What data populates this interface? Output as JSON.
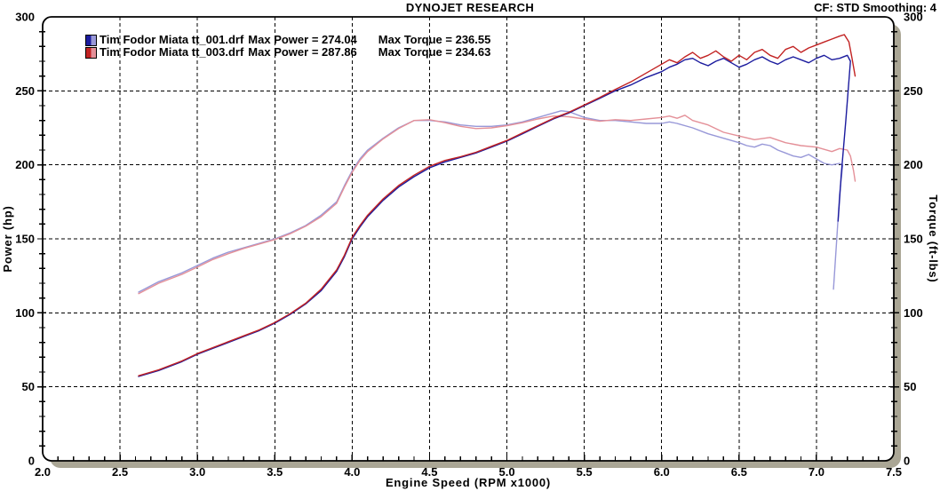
{
  "header": {
    "title": "DYNOJET RESEARCH",
    "settings_text": "CF: STD  Smoothing: 4"
  },
  "axes": {
    "x_label": "Engine Speed (RPM x1000)",
    "y_left_label": "Power (hp)",
    "y_right_label": "Torque (ft-lbs)"
  },
  "legend": {
    "entries": [
      {
        "file_label": "Tim Fodor Miata tt_001.drf",
        "power_text": "Max Power = 274.04",
        "torque_text": "Max Torque = 236.55",
        "marker_dark": "#1b1b9e",
        "marker_light": "#9898d8"
      },
      {
        "file_label": "Tim Fodor Miata tt_003.drf",
        "power_text": "Max Power = 287.86",
        "torque_text": "Max Torque = 234.63",
        "marker_dark": "#c22222",
        "marker_light": "#e49098"
      }
    ]
  },
  "chart_data": {
    "type": "line",
    "title": "DYNOJET RESEARCH",
    "xlabel": "Engine Speed (RPM x1000)",
    "ylabel_left": "Power (hp)",
    "ylabel_right": "Torque (ft-lbs)",
    "xlim": [
      2.0,
      7.5
    ],
    "ylim": [
      0,
      300
    ],
    "x_tick_labels": [
      "2.0",
      "2.5",
      "3.0",
      "3.5",
      "4.0",
      "4.5",
      "5.0",
      "5.5",
      "6.0",
      "6.5",
      "7.0",
      "7.5"
    ],
    "y_tick_labels": [
      "0",
      "50",
      "100",
      "150",
      "200",
      "250",
      "300"
    ],
    "x_major_step": 0.5,
    "x_minor_step": 0.1,
    "y_major_step": 50,
    "y_minor_step": 10,
    "grid": "dashed lines at major ticks, both axes",
    "legend_position": "top-left inside plot",
    "frame_shadow_color": "#aaa695",
    "series": [
      {
        "name": "tt_001 Power (hp)",
        "color": "#1b1b9e",
        "max_label": 274.04,
        "points": [
          [
            2.62,
            57
          ],
          [
            2.75,
            61
          ],
          [
            2.9,
            67
          ],
          [
            3.0,
            72
          ],
          [
            3.1,
            76
          ],
          [
            3.2,
            80
          ],
          [
            3.3,
            84
          ],
          [
            3.4,
            88
          ],
          [
            3.5,
            93
          ],
          [
            3.6,
            99
          ],
          [
            3.7,
            106
          ],
          [
            3.8,
            115
          ],
          [
            3.9,
            128
          ],
          [
            3.95,
            138
          ],
          [
            4.0,
            150
          ],
          [
            4.05,
            158
          ],
          [
            4.1,
            165
          ],
          [
            4.2,
            176
          ],
          [
            4.3,
            185
          ],
          [
            4.4,
            192
          ],
          [
            4.5,
            198
          ],
          [
            4.6,
            202
          ],
          [
            4.7,
            205
          ],
          [
            4.8,
            208
          ],
          [
            4.9,
            212
          ],
          [
            5.0,
            216
          ],
          [
            5.1,
            221
          ],
          [
            5.2,
            226
          ],
          [
            5.3,
            231
          ],
          [
            5.4,
            235
          ],
          [
            5.5,
            240
          ],
          [
            5.6,
            245
          ],
          [
            5.7,
            250
          ],
          [
            5.8,
            254
          ],
          [
            5.9,
            259
          ],
          [
            6.0,
            263
          ],
          [
            6.05,
            266
          ],
          [
            6.1,
            268
          ],
          [
            6.15,
            271
          ],
          [
            6.2,
            272
          ],
          [
            6.25,
            269
          ],
          [
            6.3,
            267
          ],
          [
            6.35,
            270
          ],
          [
            6.4,
            272
          ],
          [
            6.45,
            269
          ],
          [
            6.5,
            266
          ],
          [
            6.55,
            268
          ],
          [
            6.6,
            271
          ],
          [
            6.65,
            273
          ],
          [
            6.7,
            270
          ],
          [
            6.75,
            268
          ],
          [
            6.8,
            271
          ],
          [
            6.85,
            273
          ],
          [
            6.9,
            271
          ],
          [
            6.95,
            269
          ],
          [
            7.0,
            272
          ],
          [
            7.05,
            274
          ],
          [
            7.1,
            271
          ],
          [
            7.15,
            272
          ],
          [
            7.2,
            274
          ],
          [
            7.22,
            270
          ],
          [
            7.19,
            230
          ],
          [
            7.16,
            193
          ],
          [
            7.14,
            162
          ]
        ]
      },
      {
        "name": "tt_003 Power (hp)",
        "color": "#c22222",
        "max_label": 287.86,
        "points": [
          [
            2.62,
            57.5
          ],
          [
            2.75,
            61.5
          ],
          [
            2.9,
            67.5
          ],
          [
            3.0,
            72.5
          ],
          [
            3.1,
            76.5
          ],
          [
            3.2,
            80.5
          ],
          [
            3.3,
            84.5
          ],
          [
            3.4,
            88.5
          ],
          [
            3.5,
            93.5
          ],
          [
            3.6,
            99.5
          ],
          [
            3.7,
            106.5
          ],
          [
            3.8,
            116
          ],
          [
            3.9,
            129
          ],
          [
            3.95,
            139
          ],
          [
            4.0,
            151
          ],
          [
            4.05,
            159
          ],
          [
            4.1,
            166
          ],
          [
            4.2,
            177
          ],
          [
            4.3,
            186
          ],
          [
            4.4,
            193
          ],
          [
            4.5,
            199
          ],
          [
            4.6,
            203
          ],
          [
            4.7,
            205.5
          ],
          [
            4.8,
            208.5
          ],
          [
            4.9,
            212.5
          ],
          [
            5.0,
            216.5
          ],
          [
            5.1,
            221.5
          ],
          [
            5.2,
            226.5
          ],
          [
            5.3,
            231.5
          ],
          [
            5.4,
            235.5
          ],
          [
            5.5,
            240.5
          ],
          [
            5.6,
            245.5
          ],
          [
            5.7,
            251
          ],
          [
            5.8,
            256
          ],
          [
            5.9,
            262
          ],
          [
            6.0,
            268
          ],
          [
            6.05,
            271
          ],
          [
            6.1,
            269
          ],
          [
            6.15,
            273
          ],
          [
            6.2,
            276
          ],
          [
            6.25,
            272
          ],
          [
            6.3,
            274
          ],
          [
            6.35,
            277
          ],
          [
            6.4,
            273
          ],
          [
            6.45,
            270
          ],
          [
            6.5,
            274
          ],
          [
            6.55,
            271
          ],
          [
            6.6,
            276
          ],
          [
            6.65,
            278
          ],
          [
            6.7,
            274
          ],
          [
            6.75,
            272
          ],
          [
            6.8,
            278
          ],
          [
            6.85,
            280
          ],
          [
            6.9,
            276
          ],
          [
            6.95,
            279
          ],
          [
            7.0,
            281
          ],
          [
            7.05,
            283
          ],
          [
            7.1,
            285
          ],
          [
            7.15,
            287
          ],
          [
            7.18,
            288
          ],
          [
            7.21,
            283
          ],
          [
            7.23,
            272
          ],
          [
            7.25,
            260
          ]
        ]
      },
      {
        "name": "tt_001 Torque (ft-lbs)",
        "color": "#9898d8",
        "max_label": 236.55,
        "points": [
          [
            2.62,
            114
          ],
          [
            2.75,
            121
          ],
          [
            2.9,
            127
          ],
          [
            3.0,
            132
          ],
          [
            3.1,
            137
          ],
          [
            3.2,
            141
          ],
          [
            3.3,
            144
          ],
          [
            3.4,
            147
          ],
          [
            3.5,
            150
          ],
          [
            3.6,
            154
          ],
          [
            3.7,
            159
          ],
          [
            3.8,
            166
          ],
          [
            3.9,
            175
          ],
          [
            3.95,
            186
          ],
          [
            4.0,
            196
          ],
          [
            4.05,
            204
          ],
          [
            4.1,
            210
          ],
          [
            4.2,
            218
          ],
          [
            4.3,
            225
          ],
          [
            4.4,
            230
          ],
          [
            4.5,
            230
          ],
          [
            4.6,
            229
          ],
          [
            4.7,
            227
          ],
          [
            4.8,
            226
          ],
          [
            4.9,
            226
          ],
          [
            5.0,
            227
          ],
          [
            5.1,
            229
          ],
          [
            5.2,
            232
          ],
          [
            5.3,
            235
          ],
          [
            5.35,
            236.5
          ],
          [
            5.4,
            236
          ],
          [
            5.45,
            234
          ],
          [
            5.5,
            232
          ],
          [
            5.6,
            230
          ],
          [
            5.7,
            230
          ],
          [
            5.8,
            229
          ],
          [
            5.9,
            228
          ],
          [
            6.0,
            228
          ],
          [
            6.05,
            229
          ],
          [
            6.1,
            228
          ],
          [
            6.2,
            225
          ],
          [
            6.3,
            221
          ],
          [
            6.4,
            218
          ],
          [
            6.5,
            215
          ],
          [
            6.55,
            213
          ],
          [
            6.6,
            212
          ],
          [
            6.65,
            214
          ],
          [
            6.7,
            213
          ],
          [
            6.75,
            210
          ],
          [
            6.8,
            208
          ],
          [
            6.85,
            206
          ],
          [
            6.9,
            205
          ],
          [
            6.95,
            207
          ],
          [
            7.0,
            204
          ],
          [
            7.05,
            201
          ],
          [
            7.1,
            200
          ],
          [
            7.15,
            201
          ],
          [
            7.17,
            200
          ],
          [
            7.15,
            180
          ],
          [
            7.13,
            148
          ],
          [
            7.11,
            116
          ]
        ]
      },
      {
        "name": "tt_003 Torque (ft-lbs)",
        "color": "#e49098",
        "max_label": 234.63,
        "points": [
          [
            2.62,
            113
          ],
          [
            2.75,
            120
          ],
          [
            2.9,
            126
          ],
          [
            3.0,
            131
          ],
          [
            3.1,
            136
          ],
          [
            3.2,
            140
          ],
          [
            3.3,
            143.5
          ],
          [
            3.4,
            146.5
          ],
          [
            3.5,
            149.5
          ],
          [
            3.6,
            153.5
          ],
          [
            3.7,
            158.5
          ],
          [
            3.8,
            165
          ],
          [
            3.9,
            174
          ],
          [
            3.95,
            185
          ],
          [
            4.0,
            195
          ],
          [
            4.05,
            203
          ],
          [
            4.1,
            209
          ],
          [
            4.2,
            217.5
          ],
          [
            4.3,
            224.5
          ],
          [
            4.4,
            230
          ],
          [
            4.5,
            230.5
          ],
          [
            4.6,
            228.5
          ],
          [
            4.7,
            226
          ],
          [
            4.8,
            224.5
          ],
          [
            4.9,
            225
          ],
          [
            5.0,
            226.5
          ],
          [
            5.1,
            228.5
          ],
          [
            5.2,
            231
          ],
          [
            5.3,
            233
          ],
          [
            5.4,
            232.5
          ],
          [
            5.5,
            231
          ],
          [
            5.6,
            229.5
          ],
          [
            5.7,
            230.5
          ],
          [
            5.8,
            230
          ],
          [
            5.9,
            231
          ],
          [
            6.0,
            232
          ],
          [
            6.05,
            233
          ],
          [
            6.1,
            231.5
          ],
          [
            6.15,
            233.5
          ],
          [
            6.2,
            230
          ],
          [
            6.3,
            227
          ],
          [
            6.4,
            222
          ],
          [
            6.5,
            219.5
          ],
          [
            6.6,
            217
          ],
          [
            6.7,
            218.5
          ],
          [
            6.8,
            215
          ],
          [
            6.9,
            213
          ],
          [
            7.0,
            212
          ],
          [
            7.05,
            210.5
          ],
          [
            7.1,
            209
          ],
          [
            7.15,
            211
          ],
          [
            7.2,
            210
          ],
          [
            7.22,
            206
          ],
          [
            7.24,
            196
          ],
          [
            7.25,
            189
          ]
        ]
      }
    ]
  }
}
